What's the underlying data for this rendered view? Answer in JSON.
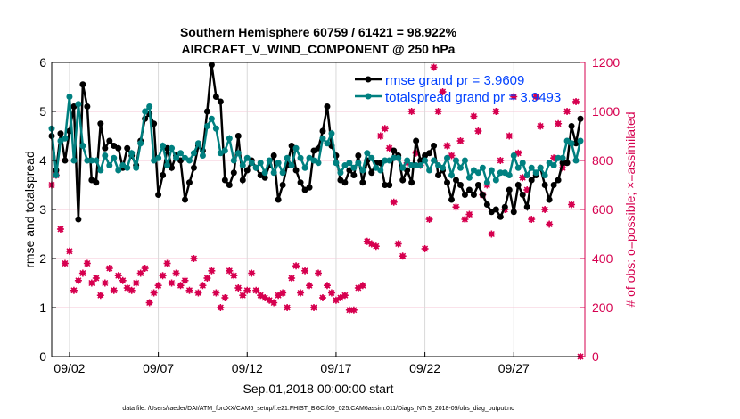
{
  "chart_data": {
    "type": "line",
    "title": [
      "Southern Hemisphere 60759 / 61421 = 98.922%",
      "AIRCRAFT_V_WIND_COMPONENT @ 250 hPa"
    ],
    "xlabel": "Sep.01,2018 00:00:00 start",
    "ylabel": "rmse and totalspread",
    "y2label": "# of obs: o=possible; ×=assimilated",
    "footer": "data file: /Users/raeder/DAI/ATM_forcXX/CAM6_setup/f.e21.FHIST_BGC.f09_025.CAM6assim.011/Diags_NTrS_2018-09/obs_diag_output.nc",
    "xlim_days": [
      0,
      30
    ],
    "x_ticks": [
      {
        "day": 1,
        "label": "09/02"
      },
      {
        "day": 6,
        "label": "09/07"
      },
      {
        "day": 11,
        "label": "09/12"
      },
      {
        "day": 16,
        "label": "09/17"
      },
      {
        "day": 21,
        "label": "09/22"
      },
      {
        "day": 26,
        "label": "09/27"
      }
    ],
    "ylim": [
      0,
      6
    ],
    "y_ticks": [
      "0",
      "1",
      "2",
      "3",
      "4",
      "5",
      "6"
    ],
    "y2lim": [
      0,
      1200
    ],
    "y2_ticks": [
      "0",
      "200",
      "400",
      "600",
      "800",
      "1000",
      "1200"
    ],
    "x_step_days": 0.25,
    "legend": {
      "position": "top-right",
      "entries": [
        "rmse grand pr = 3.9609",
        "totalspread grand pr = 3.9493"
      ]
    },
    "colors": {
      "rmse": "#000000",
      "spread": "#008080",
      "obs": "#d6004f",
      "legend_text": "#0040ff",
      "grid_h": "#f5c6d6",
      "grid_v": "#d9d9d9"
    },
    "series": [
      {
        "name": "rmse",
        "values": [
          4.5,
          3.8,
          4.55,
          4.0,
          4.6,
          5.1,
          2.8,
          5.55,
          5.1,
          3.6,
          3.55,
          4.75,
          4.25,
          4.4,
          4.3,
          4.25,
          3.85,
          4.25,
          4.1,
          3.9,
          4.4,
          4.85,
          4.95,
          4.75,
          3.3,
          3.7,
          4.25,
          3.85,
          4.1,
          4.0,
          3.2,
          3.55,
          3.85,
          4.3,
          4.2,
          5.0,
          5.95,
          5.3,
          5.2,
          3.6,
          3.5,
          3.75,
          4.5,
          3.6,
          3.8,
          4.0,
          3.85,
          3.7,
          3.65,
          3.9,
          4.1,
          3.2,
          3.5,
          3.9,
          4.3,
          3.8,
          3.55,
          3.4,
          3.45,
          4.2,
          4.25,
          4.6,
          5.1,
          4.3,
          4.1,
          3.6,
          3.55,
          3.8,
          3.7,
          4.1,
          3.55,
          4.0,
          3.75,
          3.95,
          3.95,
          3.5,
          3.5,
          4.2,
          4.1,
          3.6,
          3.8,
          3.55,
          4.4,
          4.0,
          4.1,
          4.15,
          4.3,
          3.7,
          3.8,
          3.55,
          3.2,
          3.6,
          3.5,
          3.3,
          3.4,
          3.3,
          3.5,
          3.3,
          3.1,
          2.95,
          3.0,
          2.85,
          3.05,
          3.4,
          2.95,
          3.5,
          3.3,
          3.05,
          3.6,
          3.7,
          3.85,
          3.5,
          3.2,
          3.5,
          3.6,
          3.95,
          3.95,
          4.7,
          4.35,
          4.85
        ]
      },
      {
        "name": "totalspread",
        "values": [
          4.65,
          3.7,
          4.4,
          4.45,
          5.3,
          4.0,
          5.15,
          4.3,
          4.0,
          4.0,
          4.0,
          3.8,
          4.1,
          3.9,
          4.05,
          3.8,
          3.9,
          3.85,
          4.15,
          3.85,
          4.35,
          5.0,
          5.1,
          4.0,
          4.05,
          4.3,
          3.9,
          4.25,
          4.05,
          4.15,
          4.05,
          4.0,
          4.15,
          4.35,
          4.1,
          4.7,
          4.85,
          4.65,
          4.15,
          4.2,
          4.45,
          4.0,
          4.15,
          3.9,
          4.05,
          3.95,
          3.85,
          3.95,
          3.75,
          4.0,
          3.75,
          3.95,
          3.75,
          4.05,
          3.9,
          4.25,
          4.05,
          3.85,
          4.05,
          4.0,
          3.95,
          4.45,
          4.35,
          4.55,
          3.95,
          3.75,
          3.9,
          3.95,
          3.85,
          3.95,
          3.8,
          4.15,
          4.05,
          3.85,
          3.8,
          4.0,
          4.0,
          4.05,
          4.05,
          3.85,
          4.0,
          3.9,
          3.9,
          3.9,
          4.0,
          3.8,
          4.0,
          3.9,
          3.85,
          4.05,
          3.7,
          4.0,
          3.85,
          4.0,
          3.65,
          3.8,
          3.75,
          3.85,
          3.55,
          3.8,
          3.6,
          3.75,
          3.75,
          3.7,
          4.1,
          3.85,
          3.95,
          3.7,
          3.85,
          3.75,
          3.85,
          3.7,
          3.95,
          3.9,
          4.05,
          4.05,
          4.4,
          4.35,
          4.0,
          4.4
        ]
      },
      {
        "name": "obs_count",
        "axis": "right",
        "values": [
          700,
          740,
          520,
          380,
          430,
          270,
          310,
          340,
          380,
          300,
          320,
          250,
          300,
          360,
          270,
          330,
          310,
          280,
          270,
          300,
          340,
          360,
          220,
          260,
          290,
          330,
          380,
          300,
          340,
          290,
          310,
          270,
          400,
          260,
          290,
          320,
          350,
          260,
          200,
          240,
          350,
          330,
          280,
          250,
          270,
          340,
          270,
          250,
          240,
          230,
          220,
          250,
          260,
          200,
          320,
          370,
          260,
          350,
          290,
          200,
          340,
          240,
          290,
          260,
          230,
          240,
          250,
          190,
          190,
          280,
          290,
          470,
          460,
          450,
          900,
          930,
          850,
          630,
          460,
          410,
          790,
          1000,
          830,
          780,
          440,
          560,
          1180,
          1000,
          1080,
          860,
          820,
          610,
          880,
          560,
          580,
          980,
          920,
          660,
          700,
          500,
          1000,
          800,
          600,
          900,
          1060,
          830,
          730,
          680,
          560,
          1060,
          940,
          600,
          540,
          810,
          950,
          770,
          1000,
          620,
          1040,
          0
        ]
      }
    ]
  }
}
